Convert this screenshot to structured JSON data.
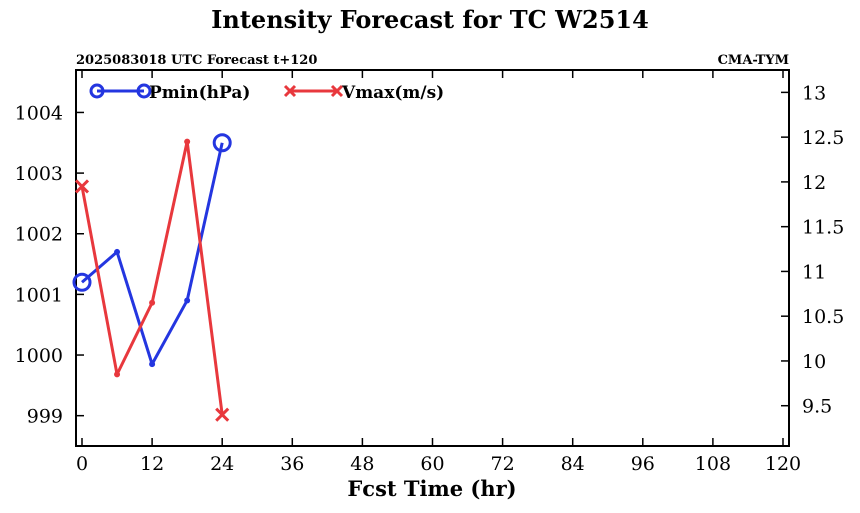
{
  "chart_data": {
    "type": "line",
    "title": "Intensity Forecast for TC W2514",
    "subtitle_left": "2025083018 UTC Forecast t+120",
    "subtitle_right": "CMA-TYM",
    "xlabel": "Fcst Time (hr)",
    "xlim": [
      0,
      120
    ],
    "xticks": [
      0,
      12,
      24,
      36,
      48,
      60,
      72,
      84,
      96,
      108,
      120
    ],
    "ylim_left": [
      998.5,
      1004.7
    ],
    "yticks_left": [
      999,
      1000,
      1001,
      1002,
      1003,
      1004
    ],
    "ylim_right": [
      9.05,
      13.25
    ],
    "yticks_right": [
      9.5,
      10,
      10.5,
      11,
      11.5,
      12,
      12.5,
      13
    ],
    "grid": false,
    "legend_position": "top-left",
    "series": [
      {
        "name": "Pmin(hPa)",
        "axis": "left",
        "color": "#2436e0",
        "marker": "circle",
        "x": [
          0,
          6,
          12,
          18,
          24
        ],
        "values": [
          1001.2,
          1001.7,
          999.85,
          1000.9,
          1003.5
        ]
      },
      {
        "name": "Vmax(m/s)",
        "axis": "right",
        "color": "#e8383d",
        "marker": "x",
        "x": [
          0,
          6,
          12,
          18,
          24
        ],
        "values": [
          11.95,
          9.85,
          10.65,
          12.45,
          9.4
        ]
      }
    ]
  }
}
